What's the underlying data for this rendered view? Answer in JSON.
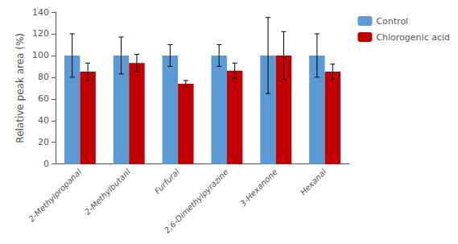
{
  "chart_data": {
    "type": "bar",
    "categories": [
      "2-Methylpropanal",
      "2-Methylbutanl",
      "Furfural",
      "2,6-Dimethylpyrazine",
      "3-Hexanone",
      "Hexanal"
    ],
    "series": [
      {
        "name": "Control",
        "color": "#5B9BD5",
        "values": [
          100,
          100,
          100,
          100,
          100,
          100
        ],
        "errors": [
          20,
          17,
          10,
          10,
          35,
          20
        ]
      },
      {
        "name": "Chlorogenic acid",
        "color": "#C00000",
        "values": [
          85,
          93,
          74,
          86,
          100,
          85
        ],
        "errors": [
          8,
          8,
          3,
          7,
          22,
          7
        ]
      }
    ],
    "ylabel": "Relative peak area (%)",
    "ylim": [
      0,
      140
    ],
    "yticks": [
      0,
      20,
      40,
      60,
      80,
      100,
      120,
      140
    ],
    "grid": false,
    "legend": "upper right"
  }
}
